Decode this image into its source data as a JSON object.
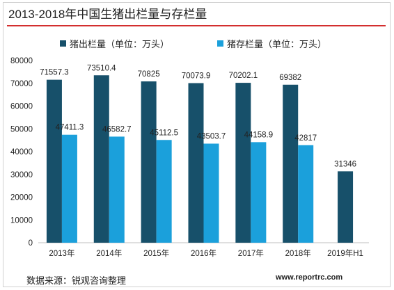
{
  "colors": {
    "series1": "#17506a",
    "series2": "#1ba0db",
    "accent": "#d32f2f"
  },
  "footer": {
    "source": "数据来源：锐观咨询整理",
    "url": "www.reportrc.com"
  },
  "chart_data": {
    "type": "bar",
    "title": "2013-2018年中国生猪出栏量与存栏量",
    "categories": [
      "2013年",
      "2014年",
      "2015年",
      "2016年",
      "2017年",
      "2018年",
      "2019年H1"
    ],
    "series": [
      {
        "name": "猪出栏量（单位：万头）",
        "values": [
          71557.3,
          73510.4,
          70825,
          70073.9,
          70202.1,
          69382,
          31346
        ],
        "labels": [
          "71557.3",
          "73510.4",
          "70825",
          "70073.9",
          "70202.1",
          "69382",
          "31346"
        ]
      },
      {
        "name": "猪存栏量（单位：万头）",
        "values": [
          47411.3,
          46582.7,
          45112.5,
          43503.7,
          44158.9,
          42817,
          null
        ],
        "labels": [
          "47411.3",
          "46582.7",
          "45112.5",
          "43503.7",
          "44158.9",
          "42817",
          ""
        ]
      }
    ],
    "ylim": [
      0,
      80000
    ],
    "yticks": [
      "0",
      "10000",
      "20000",
      "30000",
      "40000",
      "50000",
      "60000",
      "70000",
      "80000"
    ],
    "grid": false,
    "legend": "top"
  }
}
